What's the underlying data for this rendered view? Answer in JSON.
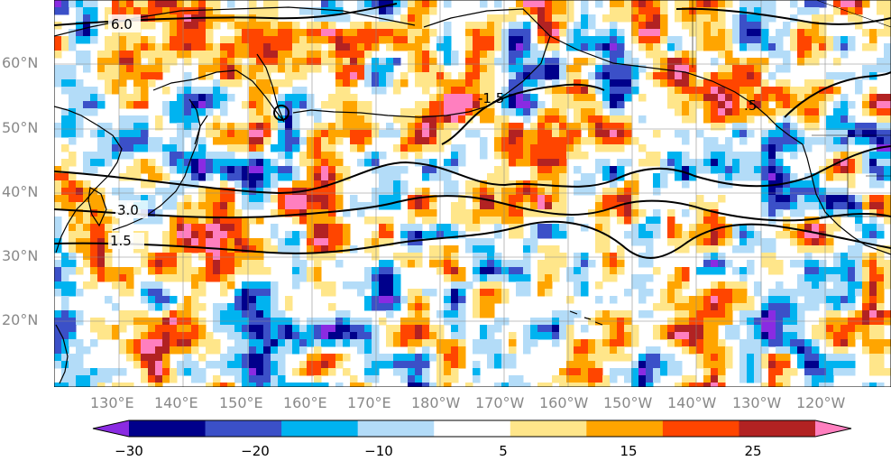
{
  "map": {
    "lat_labels": [
      "60°N",
      "50°N",
      "40°N",
      "30°N",
      "20°N"
    ],
    "lon_labels": [
      "130°E",
      "140°E",
      "150°E",
      "160°E",
      "170°E",
      "180°W",
      "170°W",
      "160°W",
      "150°W",
      "140°W",
      "130°W",
      "120°W"
    ],
    "contour_labels": [
      "6.0",
      "3.0",
      "1.5",
      "-1.5",
      ".5"
    ],
    "grid": true,
    "projection": "Plate Carree"
  },
  "colorbar": {
    "tick_labels": [
      "−30",
      "−20",
      "−10",
      "5",
      "15",
      "25"
    ],
    "levels": [
      -30,
      -25,
      -20,
      -15,
      -10,
      -5,
      5,
      10,
      15,
      20,
      25,
      30
    ],
    "colors": [
      "#8a2be2",
      "#00008b",
      "#3b50c8",
      "#00b3f0",
      "#b3dcf8",
      "#ffffff",
      "#ffe68a",
      "#ffa500",
      "#ff4500",
      "#b22222",
      "#ff7fbf"
    ],
    "extend": "both"
  }
}
